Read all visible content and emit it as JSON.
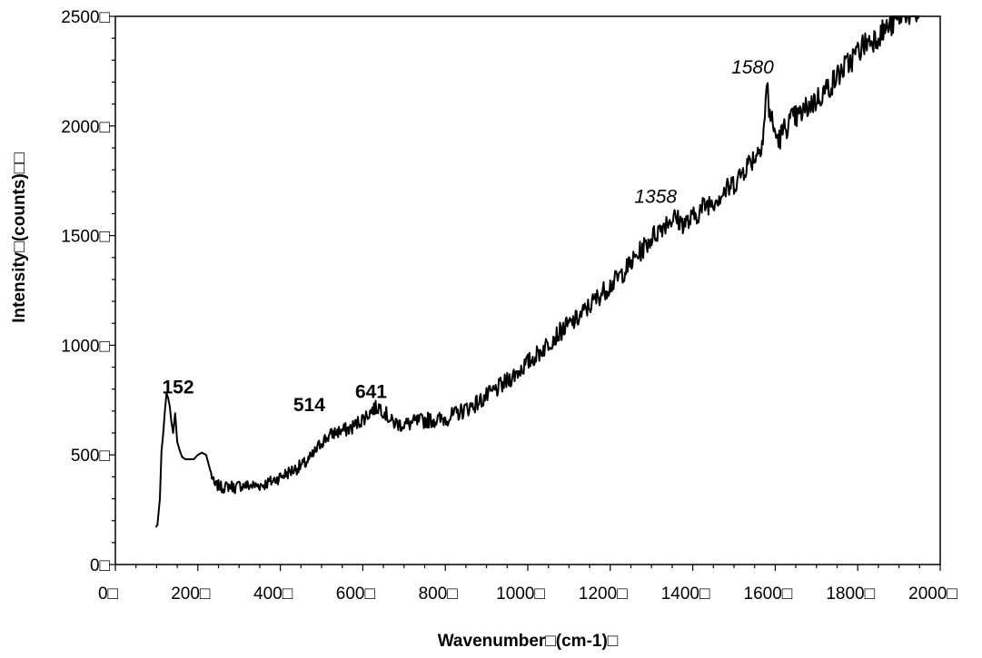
{
  "chart_data": {
    "type": "line",
    "title": "",
    "xlabel": "Wavenumber□(cm-1)□",
    "ylabel": "Intensity□(counts)□□",
    "xlim": [
      0,
      2000
    ],
    "ylim": [
      0,
      2500
    ],
    "x_ticks": [
      0,
      200,
      400,
      600,
      800,
      1000,
      1200,
      1400,
      1600,
      1800,
      2000
    ],
    "x_tick_labels": [
      "0□",
      "200□",
      "400□",
      "600□",
      "800□",
      "1000□",
      "1200□",
      "1400□",
      "1600□",
      "1800□",
      "2000□"
    ],
    "y_ticks": [
      0,
      500,
      1000,
      1500,
      2000,
      2500
    ],
    "y_tick_labels": [
      "0□",
      "500□",
      "1000□",
      "1500□",
      "2000□",
      "2500□"
    ],
    "grid": false,
    "line_color": "#000000",
    "series": [
      {
        "x": [
          98,
          102,
          106,
          108,
          112,
          116,
          120,
          124,
          128,
          132,
          136,
          140,
          145,
          150,
          156,
          162,
          170,
          180,
          190,
          200,
          210,
          220,
          230,
          240,
          250,
          260,
          270,
          280,
          290,
          300,
          320,
          340,
          360,
          380,
          400,
          420,
          440,
          460,
          480,
          500,
          514,
          530,
          550,
          570,
          590,
          610,
          625,
          641,
          655,
          670,
          690,
          710,
          730,
          760,
          790,
          820,
          850,
          880,
          910,
          940,
          970,
          1000,
          1030,
          1060,
          1090,
          1120,
          1150,
          1180,
          1210,
          1240,
          1270,
          1300,
          1320,
          1340,
          1358,
          1370,
          1390,
          1410,
          1430,
          1450,
          1470,
          1490,
          1510,
          1530,
          1550,
          1560,
          1570,
          1575,
          1580,
          1585,
          1592,
          1600,
          1610,
          1620,
          1640,
          1660,
          1680,
          1700,
          1720,
          1740,
          1760,
          1780,
          1800,
          1820,
          1840,
          1860,
          1880,
          1895,
          1905,
          1915,
          1925,
          1950
        ],
        "y": [
          170,
          180,
          260,
          300,
          520,
          600,
          700,
          780,
          760,
          720,
          650,
          600,
          690,
          560,
          520,
          490,
          480,
          480,
          480,
          500,
          510,
          500,
          430,
          360,
          360,
          350,
          355,
          360,
          350,
          360,
          360,
          360,
          365,
          380,
          400,
          420,
          440,
          460,
          500,
          560,
          580,
          600,
          610,
          620,
          650,
          680,
          710,
          720,
          690,
          650,
          640,
          640,
          650,
          660,
          660,
          680,
          710,
          740,
          780,
          820,
          870,
          920,
          970,
          1030,
          1080,
          1120,
          1180,
          1240,
          1290,
          1350,
          1420,
          1490,
          1530,
          1570,
          1580,
          1560,
          1560,
          1600,
          1640,
          1660,
          1690,
          1720,
          1760,
          1820,
          1860,
          1890,
          1950,
          2050,
          2200,
          2080,
          2020,
          1960,
          1940,
          1980,
          2030,
          2050,
          2090,
          2120,
          2160,
          2200,
          2250,
          2290,
          2340,
          2380,
          2400,
          2430,
          2460,
          2490,
          2510,
          2530,
          2510,
          2510
        ]
      }
    ],
    "annotations": [
      {
        "text": "152",
        "x": 152,
        "y": 780,
        "style": "bold"
      },
      {
        "text": "514",
        "x": 470,
        "y": 700,
        "style": "bold"
      },
      {
        "text": "641",
        "x": 620,
        "y": 760,
        "style": "bold"
      },
      {
        "text": "1358",
        "x": 1310,
        "y": 1650,
        "style": "italic"
      },
      {
        "text": "1580",
        "x": 1545,
        "y": 2240,
        "style": "italic"
      }
    ]
  }
}
